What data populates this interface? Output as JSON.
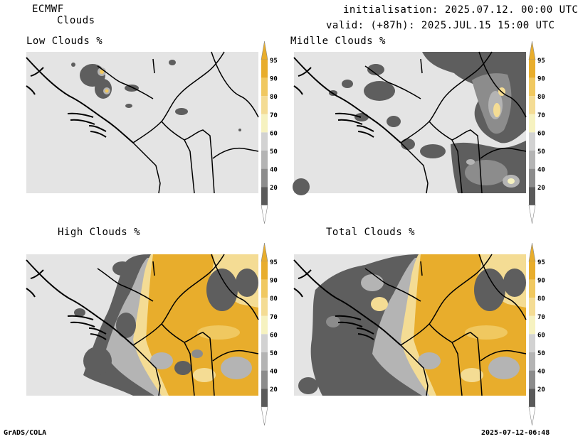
{
  "header": {
    "model": "ECMWF",
    "product": "Clouds",
    "init": "initialisation: 2025.07.12. 00:00 UTC",
    "valid": "valid: (+87h): 2025.JUL.15 15:00 UTC"
  },
  "panels": [
    {
      "id": "low",
      "title": "Low Clouds %"
    },
    {
      "id": "middle",
      "title": "Midlle Clouds %"
    },
    {
      "id": "high",
      "title": "High Clouds %"
    },
    {
      "id": "total",
      "title": "Total Clouds %"
    }
  ],
  "colorbar": {
    "levels": [
      "95",
      "90",
      "80",
      "70",
      "60",
      "50",
      "40",
      "20"
    ],
    "colors": [
      "#e8ad2c",
      "#f0c860",
      "#f4dc94",
      "#f6f2c0",
      "#d2d2d2",
      "#b4b4b4",
      "#8c8c8c",
      "#5a5a5a"
    ],
    "under_color": "#ffffff",
    "over_color": "#e8ad2c"
  },
  "footer": {
    "left": "GrADS/COLA",
    "right": "2025-07-12-06:48"
  }
}
